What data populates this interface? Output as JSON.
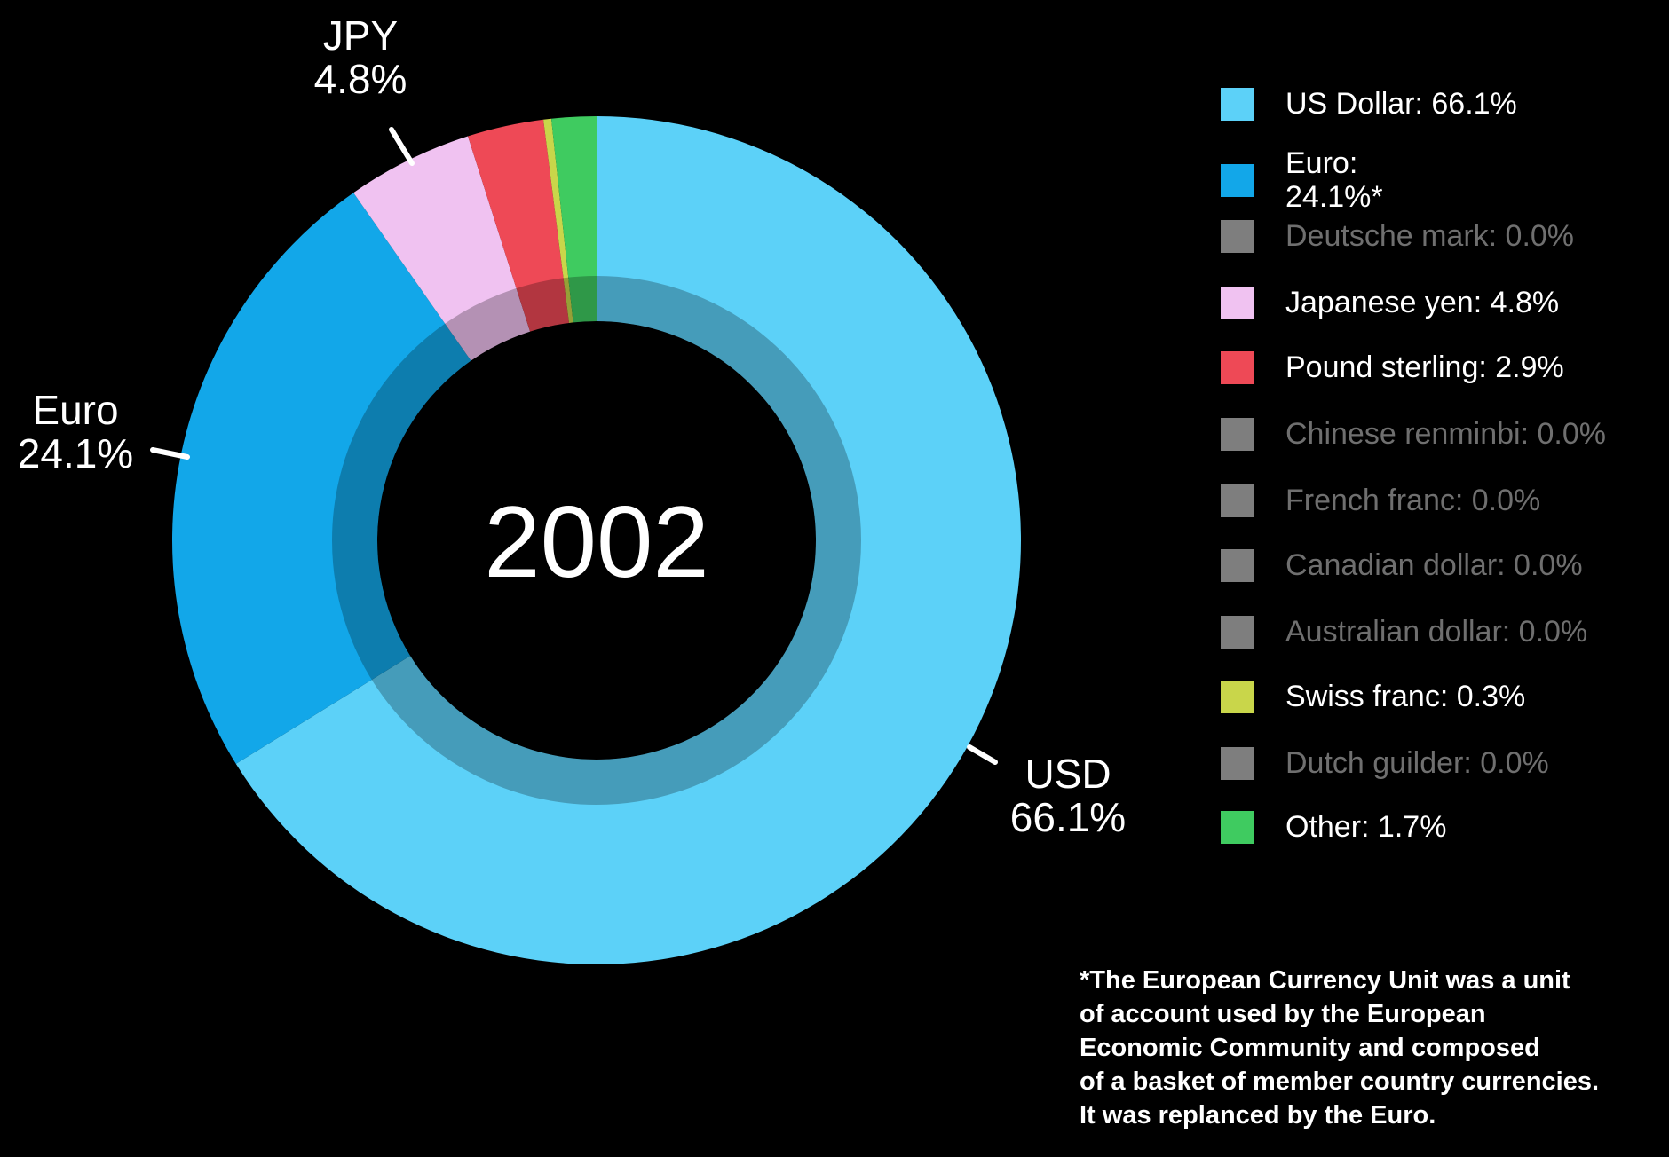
{
  "chart_data": {
    "type": "pie",
    "subtype": "donut",
    "center_label": "2002",
    "start_angle": "top",
    "direction": "clockwise",
    "legend_position": "right",
    "segments": [
      {
        "label": "US Dollar",
        "value": 66.1,
        "color": "#5CD1F8"
      },
      {
        "label": "Euro",
        "value": 24.1,
        "color": "#12A7E9"
      },
      {
        "label": "Deutsche mark",
        "value": 0.0,
        "color": "#7E7E7E"
      },
      {
        "label": "Japanese yen",
        "value": 4.8,
        "color": "#F0C2F1"
      },
      {
        "label": "Pound sterling",
        "value": 2.9,
        "color": "#EE4956"
      },
      {
        "label": "Chinese renminbi",
        "value": 0.0,
        "color": "#7E7E7E"
      },
      {
        "label": "French franc",
        "value": 0.0,
        "color": "#7E7E7E"
      },
      {
        "label": "Canadian dollar",
        "value": 0.0,
        "color": "#7E7E7E"
      },
      {
        "label": "Australian dollar",
        "value": 0.0,
        "color": "#7E7E7E"
      },
      {
        "label": "Swiss franc",
        "value": 0.3,
        "color": "#C9D64A"
      },
      {
        "label": "Dutch guilder",
        "value": 0.0,
        "color": "#7E7E7E"
      },
      {
        "label": "Other",
        "value": 1.7,
        "color": "#3FCB60"
      }
    ]
  },
  "callouts": {
    "jpy": {
      "line1": "JPY",
      "line2": "4.8%"
    },
    "euro": {
      "line1": "Euro",
      "line2": "24.1%"
    },
    "usd": {
      "line1": "USD",
      "line2": "66.1%"
    }
  },
  "legend": {
    "items": [
      {
        "text": "US Dollar: 66.1%",
        "color": "#5CD1F8",
        "dim": false
      },
      {
        "text": "Euro:\n24.1%*",
        "color": "#12A7E9",
        "dim": false
      },
      {
        "text": "Deutsche mark: 0.0%",
        "color": "#7E7E7E",
        "dim": true
      },
      {
        "text": "Japanese yen: 4.8%",
        "color": "#F0C2F1",
        "dim": false
      },
      {
        "text": "Pound sterling: 2.9%",
        "color": "#EE4956",
        "dim": false
      },
      {
        "text": "Chinese renminbi: 0.0%",
        "color": "#7E7E7E",
        "dim": true
      },
      {
        "text": "French franc: 0.0%",
        "color": "#7E7E7E",
        "dim": true
      },
      {
        "text": "Canadian dollar: 0.0%",
        "color": "#7E7E7E",
        "dim": true
      },
      {
        "text": "Australian dollar: 0.0%",
        "color": "#7E7E7E",
        "dim": true
      },
      {
        "text": "Swiss franc: 0.3%",
        "color": "#C9D64A",
        "dim": false
      },
      {
        "text": "Dutch guilder: 0.0%",
        "color": "#7E7E7E",
        "dim": true
      },
      {
        "text": "Other: 1.7%",
        "color": "#3FCB60",
        "dim": false
      }
    ]
  },
  "footnote": {
    "lines": [
      "*The European Currency Unit was a unit",
      "of account used by the European",
      "Economic Community and composed",
      "of a basket of member country currencies.",
      "It was replanced by the Euro."
    ]
  },
  "colors": {
    "background": "#000000",
    "text": "#FFFFFF",
    "dim_text": "#6F6F6F"
  }
}
